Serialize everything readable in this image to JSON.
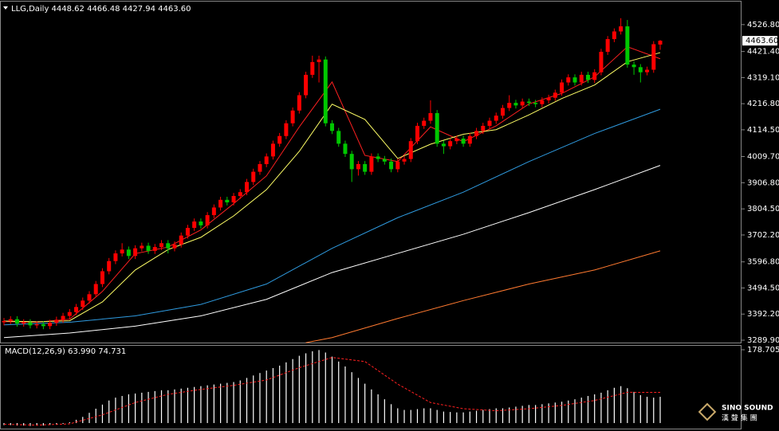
{
  "chart_data": [
    {
      "type": "candlestick",
      "title": "LLG,Daily 4448.62 4466.48 4427.94 4463.60",
      "open": [
        3360,
        3365,
        3372,
        3355,
        3360,
        3348,
        3352,
        3345,
        3358,
        3370,
        3385,
        3400,
        3420,
        3445,
        3470,
        3510,
        3560,
        3600,
        3630,
        3645,
        3620,
        3650,
        3660,
        3640,
        3655,
        3670,
        3650,
        3665,
        3700,
        3730,
        3755,
        3740,
        3780,
        3810,
        3840,
        3830,
        3855,
        3870,
        3910,
        3950,
        3980,
        4010,
        4060,
        4090,
        4140,
        4190,
        4250,
        4330,
        4380,
        4390,
        4140,
        4110,
        4060,
        4020,
        3960,
        3980,
        3950,
        4010,
        4000,
        3990,
        3960,
        3990,
        4000,
        4070,
        4130,
        4150,
        4180,
        4060,
        4050,
        4070,
        4080,
        4060,
        4090,
        4110,
        4130,
        4150,
        4170,
        4200,
        4220,
        4210,
        4225,
        4220,
        4215,
        4230,
        4240,
        4260,
        4300,
        4320,
        4300,
        4330,
        4310,
        4340,
        4420,
        4470,
        4500,
        4520,
        4370,
        4360,
        4340,
        4350,
        4448.62
      ],
      "high": [
        3377,
        3384,
        3384,
        3372,
        3372,
        3364,
        3364,
        3370,
        3382,
        3397,
        3412,
        3432,
        3457,
        3482,
        3522,
        3572,
        3612,
        3642,
        3670,
        3657,
        3662,
        3672,
        3672,
        3667,
        3682,
        3682,
        3677,
        3712,
        3742,
        3767,
        3767,
        3792,
        3822,
        3852,
        3852,
        3867,
        3882,
        3922,
        3962,
        3992,
        4022,
        4072,
        4102,
        4152,
        4202,
        4262,
        4342,
        4405,
        4405,
        4402,
        4152,
        4122,
        4072,
        4032,
        3992,
        3992,
        4022,
        4022,
        4012,
        4002,
        4002,
        4012,
        4082,
        4142,
        4162,
        4230,
        4192,
        4072,
        4082,
        4092,
        4092,
        4102,
        4122,
        4142,
        4162,
        4182,
        4212,
        4250,
        4232,
        4237,
        4237,
        4232,
        4242,
        4252,
        4272,
        4312,
        4332,
        4332,
        4342,
        4342,
        4352,
        4432,
        4482,
        4512,
        4552,
        4545,
        4382,
        4372,
        4362,
        4462,
        4466.48
      ],
      "low": [
        3348,
        3353,
        3343,
        3343,
        3336,
        3336,
        3333,
        3333,
        3346,
        3358,
        3373,
        3388,
        3408,
        3433,
        3458,
        3498,
        3548,
        3588,
        3618,
        3608,
        3608,
        3638,
        3628,
        3628,
        3643,
        3630,
        3638,
        3653,
        3688,
        3718,
        3728,
        3728,
        3768,
        3798,
        3818,
        3818,
        3843,
        3858,
        3898,
        3938,
        3968,
        3998,
        4048,
        4078,
        4128,
        4178,
        4238,
        4318,
        4300,
        4128,
        4098,
        4048,
        4008,
        3910,
        3935,
        3938,
        3938,
        3988,
        3978,
        3948,
        3948,
        3978,
        3988,
        4058,
        4118,
        4138,
        4048,
        4020,
        4038,
        4058,
        4048,
        4048,
        4078,
        4098,
        4118,
        4138,
        4158,
        4188,
        4198,
        4198,
        4208,
        4203,
        4203,
        4218,
        4228,
        4248,
        4288,
        4288,
        4288,
        4298,
        4298,
        4328,
        4408,
        4458,
        4488,
        4358,
        4330,
        4300,
        4328,
        4338,
        4427.94
      ],
      "close": [
        3365,
        3372,
        3355,
        3360,
        3348,
        3352,
        3345,
        3358,
        3370,
        3385,
        3400,
        3420,
        3445,
        3470,
        3510,
        3560,
        3600,
        3630,
        3645,
        3620,
        3650,
        3660,
        3640,
        3655,
        3670,
        3650,
        3665,
        3700,
        3730,
        3755,
        3740,
        3780,
        3810,
        3840,
        3830,
        3855,
        3870,
        3910,
        3950,
        3980,
        4010,
        4060,
        4090,
        4140,
        4190,
        4250,
        4330,
        4380,
        4390,
        4140,
        4110,
        4060,
        4020,
        3960,
        3980,
        3950,
        4010,
        4000,
        3990,
        3960,
        3990,
        4000,
        4070,
        4130,
        4150,
        4180,
        4060,
        4050,
        4070,
        4080,
        4060,
        4090,
        4110,
        4130,
        4150,
        4170,
        4200,
        4220,
        4210,
        4225,
        4220,
        4215,
        4230,
        4240,
        4260,
        4300,
        4320,
        4300,
        4330,
        4310,
        4340,
        4420,
        4470,
        4500,
        4520,
        4370,
        4360,
        4340,
        4350,
        4450,
        4463.6
      ],
      "color_up": "#ff0000",
      "color_down": "#00c800",
      "series": [
        {
          "color": "#ff2020",
          "x": [
            0,
            5,
            10,
            15,
            20,
            25,
            30,
            35,
            40,
            45,
            50,
            55,
            60,
            65,
            70,
            75,
            80,
            85,
            90,
            95,
            100
          ],
          "values": [
            3363,
            3360,
            3372,
            3481,
            3629,
            3655,
            3722,
            3825,
            3934,
            4126,
            4302,
            4014,
            3990,
            4126,
            4068,
            4130,
            4216,
            4257,
            4322,
            4440,
            4393
          ]
        },
        {
          "color": "#ffff66",
          "x": [
            0,
            5,
            10,
            15,
            20,
            25,
            30,
            35,
            40,
            45,
            50,
            55,
            60,
            65,
            70,
            75,
            80,
            85,
            90,
            95,
            100
          ],
          "values": [
            3365,
            3362,
            3366,
            3440,
            3565,
            3645,
            3693,
            3777,
            3880,
            4030,
            4215,
            4155,
            4002,
            4058,
            4097,
            4115,
            4173,
            4237,
            4290,
            4381,
            4417
          ]
        },
        {
          "color": "#2f9be0",
          "x": [
            0,
            10,
            20,
            30,
            40,
            50,
            60,
            70,
            80,
            90,
            100
          ],
          "values": [
            3350,
            3360,
            3385,
            3430,
            3510,
            3650,
            3770,
            3870,
            3990,
            4100,
            4195
          ]
        },
        {
          "color": "#ffffff",
          "x": [
            0,
            10,
            20,
            30,
            40,
            50,
            60,
            70,
            80,
            90,
            100
          ],
          "values": [
            3300,
            3318,
            3345,
            3385,
            3450,
            3555,
            3630,
            3705,
            3790,
            3880,
            3975
          ]
        },
        {
          "color": "#ff7a30",
          "x": [
            46,
            50,
            60,
            70,
            80,
            90,
            100
          ],
          "values": [
            3280,
            3300,
            3375,
            3445,
            3510,
            3565,
            3640
          ]
        }
      ],
      "ylim": [
        3280.5,
        4617
      ],
      "yticks": [
        {
          "value": 4526.8,
          "label": "4526.80"
        },
        {
          "value": 4421.4,
          "label": "4421.40"
        },
        {
          "value": 4319.1,
          "label": "4319.10"
        },
        {
          "value": 4216.8,
          "label": "4216.80"
        },
        {
          "value": 4114.5,
          "label": "4114.50"
        },
        {
          "value": 4009.7,
          "label": "4009.70"
        },
        {
          "value": 3906.8,
          "label": "3906.80"
        },
        {
          "value": 3804.5,
          "label": "3804.50"
        },
        {
          "value": 3702.2,
          "label": "3702.20"
        },
        {
          "value": 3596.8,
          "label": "3596.80"
        },
        {
          "value": 3494.5,
          "label": "3494.50"
        },
        {
          "value": 3392.2,
          "label": "3392.20"
        },
        {
          "value": 3289.9,
          "label": "3289.90"
        }
      ],
      "last_price": {
        "value": 4463.6,
        "label": "4463.60"
      }
    },
    {
      "type": "macd",
      "title": "MACD(12,26,9) 63.990 74.731",
      "values": [
        -5,
        -5,
        -6,
        -6,
        -7,
        -6,
        -6,
        -5,
        -4,
        -2,
        2,
        8,
        15,
        25,
        35,
        45,
        55,
        62,
        66,
        70,
        72,
        74,
        76,
        78,
        80,
        80,
        82,
        84,
        86,
        88,
        90,
        92,
        94,
        96,
        98,
        100,
        104,
        110,
        116,
        122,
        128,
        134,
        140,
        148,
        156,
        164,
        170,
        175,
        178,
        172,
        162,
        150,
        138,
        124,
        110,
        96,
        82,
        70,
        58,
        46,
        36,
        32,
        32,
        34,
        36,
        36,
        32,
        28,
        27,
        26,
        26,
        28,
        30,
        32,
        34,
        36,
        36,
        38,
        40,
        42,
        44,
        44,
        46,
        48,
        50,
        52,
        55,
        58,
        62,
        66,
        70,
        74,
        80,
        86,
        90,
        85,
        76,
        68,
        64,
        62,
        63.99
      ],
      "color": "#ffffff",
      "series": [
        {
          "color": "#ff2020",
          "x": [
            0,
            5,
            10,
            15,
            20,
            25,
            30,
            35,
            40,
            45,
            50,
            55,
            60,
            65,
            70,
            75,
            80,
            85,
            90,
            95,
            100
          ],
          "values": [
            -3,
            -5,
            -2,
            20,
            50,
            70,
            82,
            92,
            105,
            135,
            160,
            150,
            95,
            50,
            35,
            30,
            35,
            43,
            55,
            75,
            74.731
          ]
        }
      ],
      "ylim": [
        -11.6,
        190.4
      ],
      "yticks": [
        178.705
      ]
    }
  ],
  "watermark": {
    "brand": "SINO SOUND",
    "subtitle": "漢 聲 集 團"
  }
}
